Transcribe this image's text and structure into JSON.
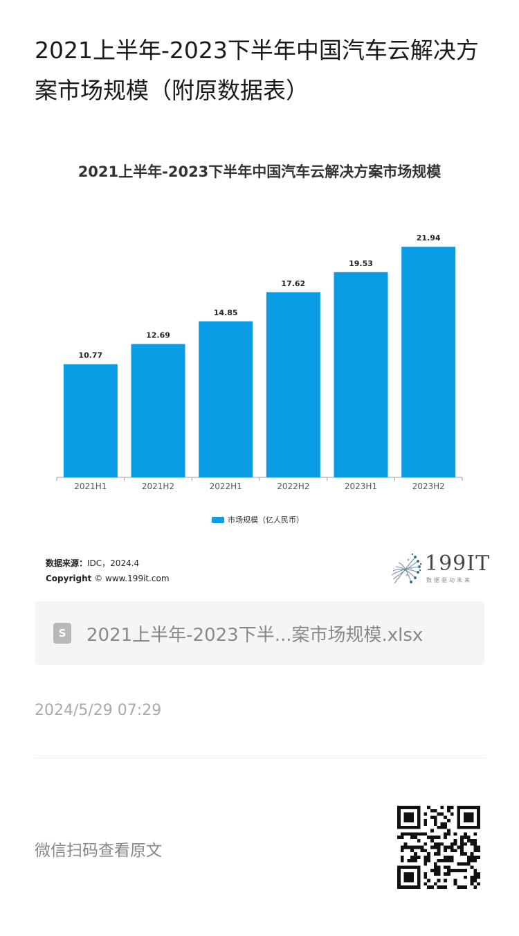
{
  "article": {
    "title": "2021上半年-2023下半年中国汽车云解决方案市场规模（附原数据表）",
    "date": "2024/5/29 07:29",
    "scan_prompt": "微信扫码查看原文"
  },
  "chart_data": {
    "type": "bar",
    "title": "2021上半年-2023下半年中国汽车云解决方案市场规模",
    "categories": [
      "2021H1",
      "2021H2",
      "2022H1",
      "2022H2",
      "2023H1",
      "2023H2"
    ],
    "series": [
      {
        "name": "市场规模（亿人民币）",
        "values": [
          10.77,
          12.69,
          14.85,
          17.62,
          19.53,
          21.94
        ],
        "color": "#0a9de6"
      }
    ],
    "ylim": [
      0,
      24
    ],
    "grid": false,
    "legend": "bottom",
    "data_labels": true
  },
  "source": {
    "label": "数据来源：",
    "value": "IDC，2024.4",
    "copyright_label": "Copyright",
    "copyright_value": "© www.199it.com"
  },
  "logo": {
    "name": "199IT",
    "tagline": "数据驱动未来"
  },
  "attachment": {
    "icon": "spreadsheet-file-icon",
    "icon_letter": "S",
    "filename": "2021上半年-2023下半...案市场规模.xlsx"
  }
}
